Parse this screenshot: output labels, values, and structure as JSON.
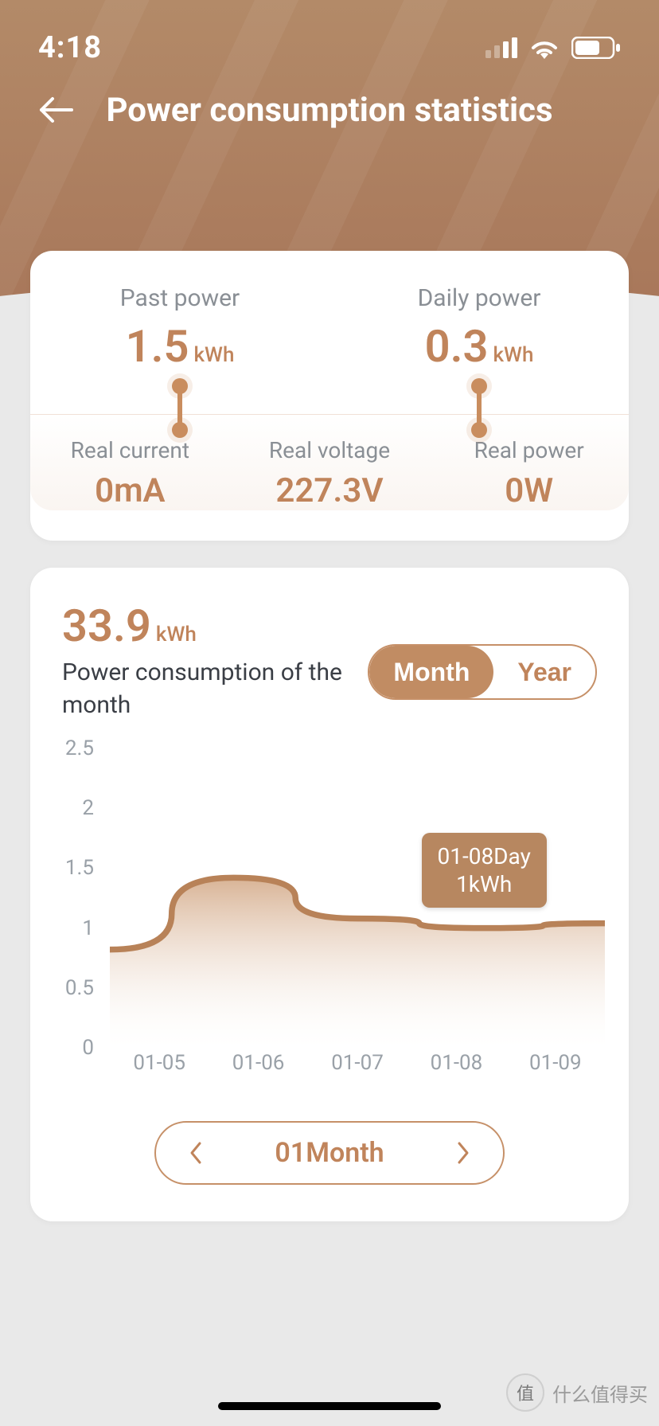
{
  "status": {
    "time": "4:18"
  },
  "header": {
    "title": "Power consumption statistics"
  },
  "colors": {
    "accent": "#c0845b",
    "accent_fill_top": "#c59a77",
    "accent_fill_bottom": "#f6eee8",
    "hero_top": "#b38a68",
    "hero_bottom": "#a8775a",
    "text_muted": "#8a8f95",
    "text_body": "#3a3e45",
    "card_bg": "#ffffff",
    "page_bg": "#e9e9e9",
    "tooltip_bg": "#b78760"
  },
  "metrics": {
    "past_power": {
      "label": "Past power",
      "value": "1.5",
      "unit": "kWh"
    },
    "daily_power": {
      "label": "Daily power",
      "value": "0.3",
      "unit": "kWh"
    },
    "real_current": {
      "label": "Real current",
      "value": "0mA"
    },
    "real_voltage": {
      "label": "Real voltage",
      "value": "227.3V"
    },
    "real_power": {
      "label": "Real power",
      "value": "0W"
    }
  },
  "chart": {
    "type": "area",
    "total_value": "33.9",
    "total_unit": "kWh",
    "caption": "Power consumption of the month",
    "period_tabs": {
      "month": "Month",
      "year": "Year",
      "active": "month"
    },
    "y": {
      "min": 0,
      "max": 2.5,
      "ticks": [
        2.5,
        2.0,
        1.5,
        1.0,
        0.5,
        0
      ]
    },
    "x": {
      "labels": [
        "01-05",
        "01-06",
        "01-07",
        "01-08",
        "01-09"
      ]
    },
    "series": {
      "values": [
        0.82,
        1.42,
        1.08,
        1.0,
        1.04
      ],
      "line_color": "#b88258",
      "line_width": 3,
      "fill_from": "#d4ab8a",
      "fill_to": "#ffffff"
    },
    "tooltip": {
      "x_index": 3,
      "line1": "01-08Day",
      "line2": "1kWh"
    },
    "month_selector": {
      "label": "01Month"
    }
  },
  "watermark": {
    "badge": "值",
    "text": "什么值得买"
  }
}
